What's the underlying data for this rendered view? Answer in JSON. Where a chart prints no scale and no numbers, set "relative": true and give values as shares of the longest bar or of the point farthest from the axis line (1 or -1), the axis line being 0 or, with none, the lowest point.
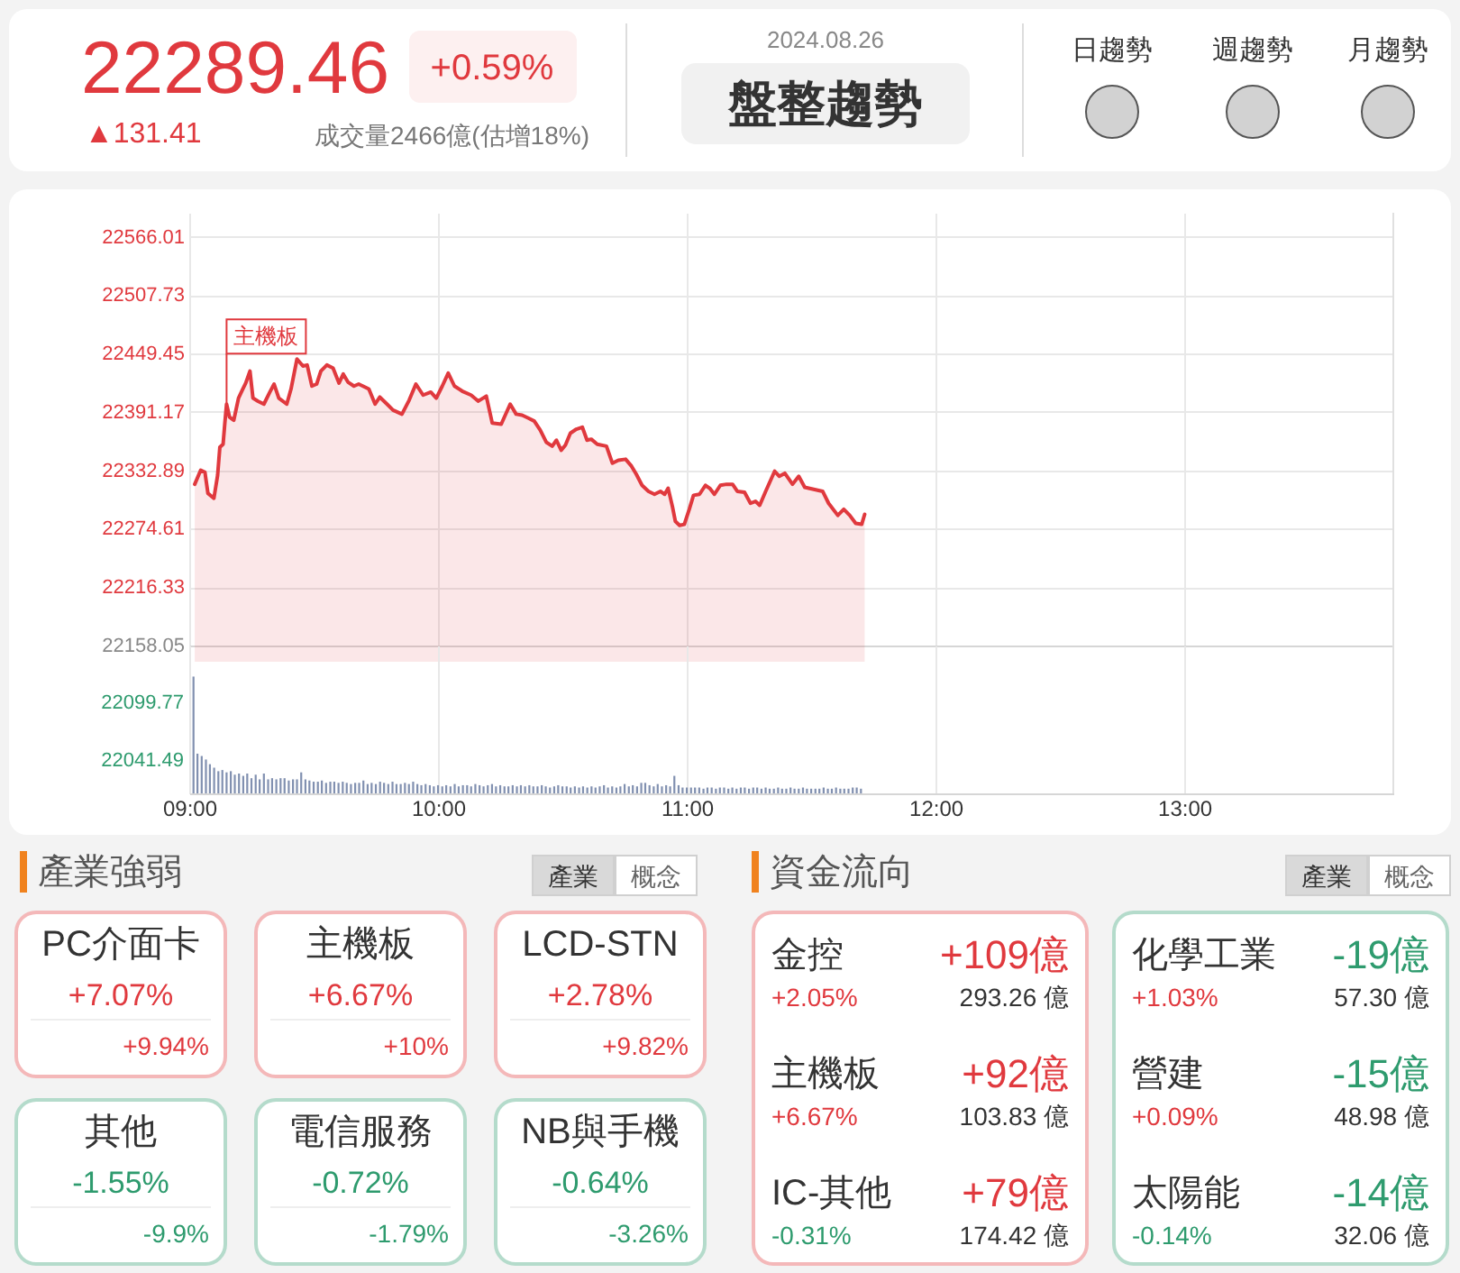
{
  "chart_data": [
    {
      "type": "other",
      "annotations": [
        "22289.46",
        "+0.59%",
        "▲131.41",
        "成交量2466億(估增18%)",
        "2024.08.26",
        "盤整趨勢",
        "日趨勢",
        "週趨勢",
        "月趨勢"
      ]
    },
    {
      "type": "area",
      "color": "#e0393e",
      "x": [
        9.022,
        9.046,
        9.063,
        9.075,
        9.099,
        9.114,
        9.123,
        9.136,
        9.143,
        9.15,
        9.162,
        9.179,
        9.198,
        9.215,
        9.227,
        9.244,
        9.256,
        9.276,
        9.3,
        9.324,
        9.341,
        9.36,
        9.392,
        9.409,
        9.433,
        9.457,
        9.474,
        9.493,
        9.512,
        9.529,
        9.553,
        9.578,
        9.602,
        9.619,
        9.638,
        9.662,
        9.681,
        9.698,
        9.722,
        9.747,
        9.766,
        9.795,
        9.819,
        9.855,
        9.884,
        9.911,
        9.94,
        9.971,
        9.993,
        10.017,
        10.041,
        10.066,
        10.097,
        10.133,
        10.162,
        10.194,
        10.218,
        10.254,
        10.29,
        10.314,
        10.338,
        10.363,
        10.387,
        10.411,
        10.435,
        10.459,
        10.476,
        10.495,
        10.512,
        10.532,
        10.556,
        10.58,
        10.599,
        10.616,
        10.64,
        10.677,
        10.701,
        10.725,
        10.754,
        10.778,
        10.797,
        10.82,
        10.846,
        10.87,
        10.894,
        10.911,
        10.925,
        10.942,
        10.954,
        10.971,
        10.99,
        11.01,
        11.027,
        11.051,
        11.075,
        11.092,
        11.111,
        11.135,
        11.16,
        11.184,
        11.203,
        11.232,
        11.256,
        11.276,
        11.293,
        11.317,
        11.353,
        11.372,
        11.394,
        11.425,
        11.45,
        11.474,
        11.51,
        11.546,
        11.57,
        11.607,
        11.631,
        11.655,
        11.679,
        11.703,
        11.715
      ],
      "values": [
        22319,
        22333,
        22331,
        22310,
        22305,
        22328,
        22356,
        22359,
        22380,
        22399,
        22386,
        22383,
        22405,
        22414,
        22420,
        22432,
        22405,
        22402,
        22399,
        22411,
        22419,
        22405,
        22399,
        22414,
        22444,
        22437,
        22438,
        22417,
        22419,
        22432,
        22438,
        22435,
        22420,
        22429,
        22421,
        22417,
        22419,
        22417,
        22414,
        22399,
        22406,
        22399,
        22393,
        22389,
        22403,
        22419,
        22408,
        22411,
        22405,
        22417,
        22430,
        22417,
        22412,
        22408,
        22402,
        22407,
        22380,
        22379,
        22399,
        22389,
        22388,
        22385,
        22382,
        22373,
        22361,
        22357,
        22363,
        22353,
        22358,
        22370,
        22374,
        22376,
        22363,
        22364,
        22359,
        22357,
        22340,
        22343,
        22344,
        22337,
        22329,
        22318,
        22312,
        22309,
        22312,
        22309,
        22315,
        22297,
        22282,
        22278,
        22279,
        22294,
        22308,
        22309,
        22318,
        22315,
        22309,
        22318,
        22319,
        22319,
        22312,
        22311,
        22300,
        22302,
        22298,
        22312,
        22332,
        22327,
        22330,
        22319,
        22327,
        22316,
        22314,
        22312,
        22300,
        22288,
        22294,
        22288,
        22280,
        22279,
        22289
      ],
      "xlim": [
        9,
        13.84
      ],
      "xticks": [
        9,
        10,
        11,
        12,
        13
      ],
      "ylim": [
        22158.05,
        22590
      ],
      "yticks": [
        22158.05,
        22216.33,
        22274.61,
        22332.89,
        22391.17,
        22449.45,
        22507.73,
        22566.01
      ],
      "grid": true,
      "tick_labels": "y",
      "annotations": [
        {
          "text": "主機板",
          "x": 9.15,
          "y": 22399
        }
      ]
    },
    {
      "type": "bar",
      "relative": true,
      "color": "#8190b0",
      "x": [
        9.017,
        9.033,
        9.05,
        9.067,
        9.083,
        9.1,
        9.117,
        9.133,
        9.15,
        9.167,
        9.183,
        9.2,
        9.217,
        9.233,
        9.25,
        9.267,
        9.283,
        9.3,
        9.317,
        9.333,
        9.35,
        9.367,
        9.383,
        9.4,
        9.417,
        9.433,
        9.45,
        9.467,
        9.483,
        9.5,
        9.517,
        9.533,
        9.55,
        9.567,
        9.583,
        9.6,
        9.617,
        9.633,
        9.65,
        9.667,
        9.683,
        9.7,
        9.717,
        9.733,
        9.75,
        9.767,
        9.783,
        9.8,
        9.817,
        9.833,
        9.85,
        9.867,
        9.883,
        9.9,
        9.917,
        9.933,
        9.95,
        9.967,
        9.983,
        10,
        10.017,
        10.033,
        10.05,
        10.067,
        10.083,
        10.1,
        10.117,
        10.133,
        10.15,
        10.167,
        10.183,
        10.2,
        10.217,
        10.233,
        10.25,
        10.267,
        10.283,
        10.3,
        10.317,
        10.333,
        10.35,
        10.367,
        10.383,
        10.4,
        10.417,
        10.433,
        10.45,
        10.467,
        10.483,
        10.5,
        10.517,
        10.533,
        10.55,
        10.567,
        10.583,
        10.6,
        10.617,
        10.633,
        10.65,
        10.667,
        10.683,
        10.7,
        10.717,
        10.733,
        10.75,
        10.767,
        10.783,
        10.8,
        10.817,
        10.833,
        10.85,
        10.867,
        10.883,
        10.9,
        10.917,
        10.933,
        10.95,
        10.967,
        10.983,
        11,
        11.017,
        11.033,
        11.05,
        11.067,
        11.083,
        11.1,
        11.117,
        11.133,
        11.15,
        11.167,
        11.183,
        11.2,
        11.217,
        11.233,
        11.25,
        11.267,
        11.283,
        11.3,
        11.317,
        11.333,
        11.35,
        11.367,
        11.383,
        11.4,
        11.417,
        11.433,
        11.45,
        11.467,
        11.483,
        11.5,
        11.517,
        11.533,
        11.55,
        11.567,
        11.583,
        11.6,
        11.617,
        11.633,
        11.65,
        11.667,
        11.683,
        11.7
      ],
      "values": [
        1,
        0.34,
        0.32,
        0.29,
        0.25,
        0.22,
        0.19,
        0.2,
        0.18,
        0.19,
        0.16,
        0.17,
        0.15,
        0.17,
        0.13,
        0.16,
        0.12,
        0.17,
        0.12,
        0.13,
        0.12,
        0.13,
        0.13,
        0.11,
        0.12,
        0.12,
        0.18,
        0.12,
        0.11,
        0.1,
        0.1,
        0.11,
        0.09,
        0.1,
        0.1,
        0.09,
        0.1,
        0.09,
        0.08,
        0.09,
        0.09,
        0.11,
        0.08,
        0.09,
        0.08,
        0.1,
        0.09,
        0.08,
        0.1,
        0.08,
        0.08,
        0.09,
        0.08,
        0.1,
        0.08,
        0.07,
        0.08,
        0.07,
        0.06,
        0.07,
        0.06,
        0.07,
        0.06,
        0.08,
        0.06,
        0.07,
        0.07,
        0.06,
        0.08,
        0.07,
        0.06,
        0.07,
        0.08,
        0.06,
        0.07,
        0.06,
        0.06,
        0.07,
        0.06,
        0.07,
        0.06,
        0.07,
        0.06,
        0.06,
        0.07,
        0.06,
        0.05,
        0.06,
        0.07,
        0.06,
        0.06,
        0.05,
        0.06,
        0.05,
        0.06,
        0.05,
        0.06,
        0.05,
        0.06,
        0.07,
        0.05,
        0.06,
        0.05,
        0.06,
        0.08,
        0.06,
        0.07,
        0.06,
        0.09,
        0.09,
        0.07,
        0.06,
        0.08,
        0.06,
        0.07,
        0.06,
        0.15,
        0.07,
        0.05,
        0.05,
        0.05,
        0.05,
        0.05,
        0.04,
        0.05,
        0.05,
        0.04,
        0.05,
        0.05,
        0.04,
        0.05,
        0.04,
        0.05,
        0.05,
        0.04,
        0.05,
        0.05,
        0.04,
        0.05,
        0.04,
        0.04,
        0.05,
        0.04,
        0.04,
        0.05,
        0.04,
        0.04,
        0.05,
        0.04,
        0.04,
        0.04,
        0.04,
        0.05,
        0.04,
        0.04,
        0.05,
        0.04,
        0.04,
        0.04,
        0.05,
        0.05,
        0.04
      ],
      "xlim": [
        9,
        13.84
      ],
      "xticks": [
        {
          "value": 9,
          "label": "09:00"
        },
        {
          "value": 10,
          "label": "10:00"
        },
        {
          "value": 11,
          "label": "11:00"
        },
        {
          "value": 12,
          "label": "12:00"
        },
        {
          "value": 13,
          "label": "13:00"
        }
      ],
      "grid": "x",
      "annotations": [
        "22099.77",
        "22041.49"
      ]
    },
    {
      "type": "other",
      "title": "產業強弱",
      "annotations": [
        "產業",
        "概念",
        "PC介面卡",
        "+7.07%",
        "+9.94%",
        "主機板",
        "+6.67%",
        "+10%",
        "LCD-STN",
        "+2.78%",
        "+9.82%",
        "其他",
        "-1.55%",
        "-9.9%",
        "電信服務",
        "-0.72%",
        "-1.79%",
        "NB與手機",
        "-0.64%",
        "-3.26%"
      ]
    },
    {
      "type": "other",
      "title": "資金流向",
      "annotations": [
        "產業",
        "概念",
        "金控",
        "+109億",
        "+2.05%",
        "293.26 億",
        "主機板",
        "+92億",
        "+6.67%",
        "103.83 億",
        "IC-其他",
        "+79億",
        "-0.31%",
        "174.42 億",
        "化學工業",
        "-19億",
        "+1.03%",
        "57.30 億",
        "營建",
        "-15億",
        "+0.09%",
        "48.98 億",
        "太陽能",
        "-14億",
        "-0.14%",
        "32.06 億"
      ]
    }
  ]
}
